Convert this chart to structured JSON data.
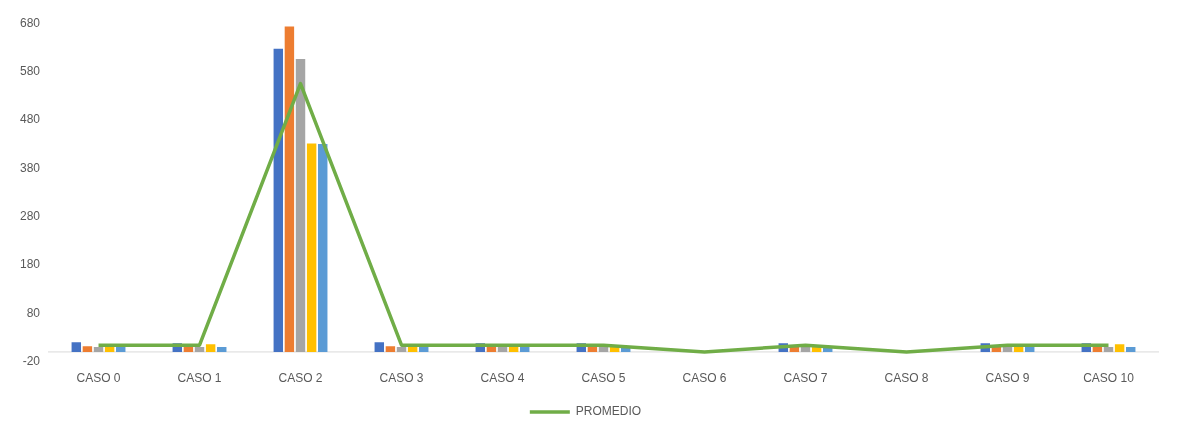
{
  "chart_data": {
    "type": "bar",
    "categories": [
      "CASO 0",
      "CASO 1",
      "CASO 2",
      "CASO 3",
      "CASO 4",
      "CASO 5",
      "CASO 6",
      "CASO 7",
      "CASO 8",
      "CASO 9",
      "CASO 10"
    ],
    "series": [
      {
        "color": "#4472c4",
        "values": [
          20,
          18,
          627,
          20,
          18,
          18,
          0,
          18,
          0,
          18,
          18
        ]
      },
      {
        "color": "#ed7d31",
        "values": [
          12,
          14,
          673,
          12,
          14,
          14,
          0,
          12,
          0,
          12,
          14
        ]
      },
      {
        "color": "#a5a5a5",
        "values": [
          10,
          10,
          606,
          10,
          14,
          14,
          0,
          12,
          0,
          12,
          10
        ]
      },
      {
        "color": "#ffc000",
        "values": [
          14,
          16,
          431,
          14,
          14,
          12,
          0,
          12,
          0,
          14,
          16
        ]
      },
      {
        "color": "#5b9bd5",
        "values": [
          12,
          10,
          430,
          12,
          12,
          8,
          0,
          8,
          0,
          12,
          10
        ]
      },
      {
        "name": "PROMEDIO",
        "type": "line",
        "color": "#70ad47",
        "values": [
          14,
          14,
          555,
          14,
          14,
          14,
          0,
          14,
          0,
          14,
          14
        ]
      }
    ],
    "ylim": [
      -20,
      680
    ],
    "yticks": [
      -20,
      80,
      180,
      280,
      380,
      480,
      580,
      680
    ],
    "grid": false,
    "legend": "bottom",
    "marker": "none"
  }
}
